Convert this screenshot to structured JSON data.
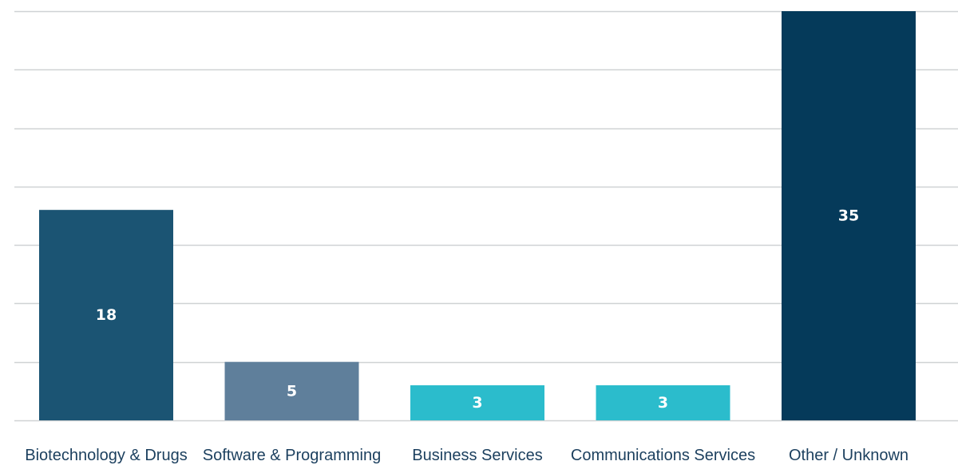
{
  "chart_data": {
    "type": "bar",
    "categories": [
      "Biotechnology & Drugs",
      "Software & Programming",
      "Business Services",
      "Communications Services",
      "Other / Unknown"
    ],
    "values": [
      18,
      5,
      3,
      3,
      35
    ],
    "data_labels": [
      "18",
      "5",
      "3",
      "3",
      "35"
    ],
    "colors": [
      "#1b5473",
      "#5f7f9b",
      "#2bbccc",
      "#2bbccc",
      "#053a5a"
    ],
    "title": "",
    "xlabel": "",
    "ylabel": "",
    "ylim": [
      0,
      35
    ],
    "grid": true,
    "grid_step": 5,
    "legend": "none"
  }
}
